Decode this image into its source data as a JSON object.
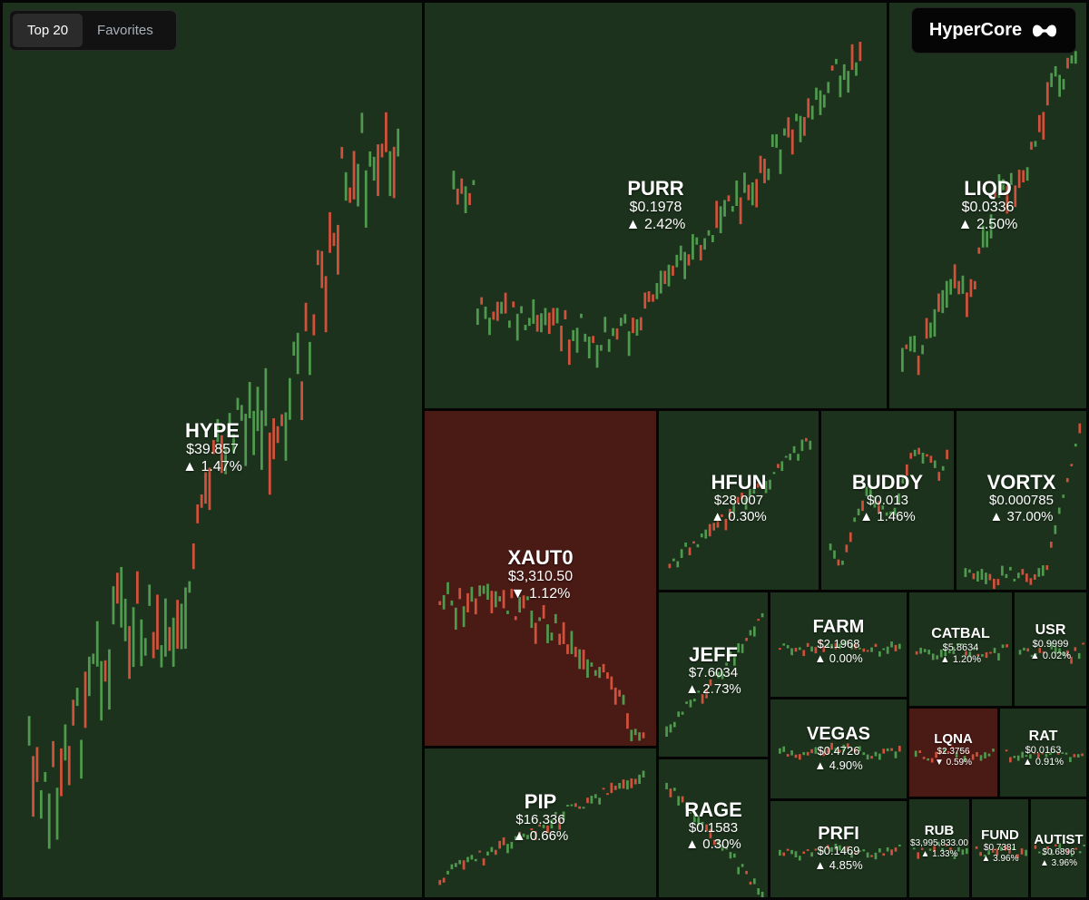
{
  "controls": {
    "tabs": [
      {
        "label": "Top 20",
        "active": true
      },
      {
        "label": "Favorites",
        "active": false
      }
    ]
  },
  "brand": {
    "name": "HyperCore",
    "icon": "hyperliquid-logo-icon"
  },
  "colors": {
    "up_bg": "#1c321c",
    "down_bg": "#4a1a15",
    "candle_up": "#4f9a4f",
    "candle_down": "#d2513c"
  },
  "tiles": [
    {
      "symbol": "HYPE",
      "price": "$39.857",
      "change": "▲ 1.47%",
      "direction": "up",
      "chart_trend": "strong-up"
    },
    {
      "symbol": "PURR",
      "price": "$0.1978",
      "change": "▲ 2.42%",
      "direction": "up",
      "chart_trend": "u-shape-up"
    },
    {
      "symbol": "LIQD",
      "price": "$0.0336",
      "change": "▲ 2.50%",
      "direction": "up",
      "chart_trend": "strong-up"
    },
    {
      "symbol": "XAUT0",
      "price": "$3,310.50",
      "change": "▼ 1.12%",
      "direction": "down",
      "chart_trend": "flat-down"
    },
    {
      "symbol": "HFUN",
      "price": "$28.007",
      "change": "▲ 0.30%",
      "direction": "up",
      "chart_trend": "step-up"
    },
    {
      "symbol": "BUDDY",
      "price": "$0.013",
      "change": "▲ 1.46%",
      "direction": "up",
      "chart_trend": "volatile-up"
    },
    {
      "symbol": "VORTX",
      "price": "$0.000785",
      "change": "▲ 37.00%",
      "direction": "up",
      "chart_trend": "flat-then-spike"
    },
    {
      "symbol": "JEFF",
      "price": "$7.6034",
      "change": "▲ 2.73%",
      "direction": "up",
      "chart_trend": "step-up"
    },
    {
      "symbol": "FARM",
      "price": "$2.1968",
      "change": "▲ 0.00%",
      "direction": "up",
      "chart_trend": "flat"
    },
    {
      "symbol": "CATBAL",
      "price": "$5.8634",
      "change": "▲ 1.20%",
      "direction": "up",
      "chart_trend": "flat"
    },
    {
      "symbol": "USR",
      "price": "$0.9999",
      "change": "▲ 0.02%",
      "direction": "up",
      "chart_trend": "flat"
    },
    {
      "symbol": "VEGAS",
      "price": "$0.4726",
      "change": "▲ 4.90%",
      "direction": "up",
      "chart_trend": "flat"
    },
    {
      "symbol": "LQNA",
      "price": "$2.3756",
      "change": "▼ 0.59%",
      "direction": "down",
      "chart_trend": "flat"
    },
    {
      "symbol": "RAT",
      "price": "$0.0163",
      "change": "▲ 0.91%",
      "direction": "up",
      "chart_trend": "flat"
    },
    {
      "symbol": "PIP",
      "price": "$16.336",
      "change": "▲ 0.66%",
      "direction": "up",
      "chart_trend": "step-up"
    },
    {
      "symbol": "RAGE",
      "price": "$0.1583",
      "change": "▲ 0.30%",
      "direction": "up",
      "chart_trend": "down-steps"
    },
    {
      "symbol": "PRFI",
      "price": "$0.1469",
      "change": "▲ 4.85%",
      "direction": "up",
      "chart_trend": "flat"
    },
    {
      "symbol": "RUB",
      "price": "$3,995,833.00",
      "change": "▲ 1.33%",
      "direction": "up",
      "chart_trend": "flat"
    },
    {
      "symbol": "FUND",
      "price": "$0.7381",
      "change": "▲ 3.96%",
      "direction": "up",
      "chart_trend": "flat"
    },
    {
      "symbol": "AUTIST",
      "price": "$0.6896",
      "change": "▲ 3.96%",
      "direction": "up",
      "chart_trend": "flat"
    }
  ]
}
